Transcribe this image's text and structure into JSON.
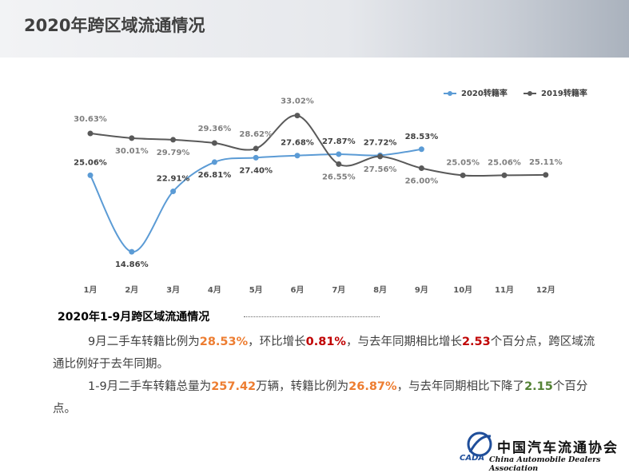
{
  "header": {
    "title": "2020年跨区域流通情况"
  },
  "chart_data": {
    "type": "line",
    "categories": [
      "1月",
      "2月",
      "3月",
      "4月",
      "5月",
      "6月",
      "7月",
      "8月",
      "9月",
      "10月",
      "11月",
      "12月"
    ],
    "series": [
      {
        "name": "2020转籍率",
        "color": "#5b9bd5",
        "values": [
          25.06,
          14.86,
          22.91,
          26.81,
          27.4,
          27.68,
          27.87,
          27.72,
          28.53,
          null,
          null,
          null
        ],
        "value_labels": [
          "25.06%",
          "14.86%",
          "22.91%",
          "26.81%",
          "27.40%",
          "27.68%",
          "27.87%",
          "27.72%",
          "28.53%",
          null,
          null,
          null
        ]
      },
      {
        "name": "2019转籍率",
        "color": "#595959",
        "values": [
          30.63,
          30.01,
          29.79,
          29.36,
          28.62,
          33.02,
          26.55,
          27.56,
          26.0,
          25.05,
          25.06,
          25.11
        ],
        "value_labels": [
          "30.63%",
          "30.01%",
          "29.79%",
          "29.36%",
          "28.62%",
          "33.02%",
          "26.55%",
          "27.56%",
          "26.00%",
          "25.05%",
          "25.06%",
          "25.11%"
        ]
      }
    ],
    "ylim": [
      12,
      35
    ],
    "grid": false,
    "legend": "top-right"
  },
  "section": {
    "title": "2020年1-9月跨区域流通情况",
    "paragraphs": [
      [
        {
          "text": "9月二手车转籍比例为"
        },
        {
          "text": "28.53%",
          "color": "#ed7d31"
        },
        {
          "text": "，环比增长"
        },
        {
          "text": "0.81%",
          "color": "#c00000"
        },
        {
          "text": "，与去年同期相比增长"
        },
        {
          "text": "2.53",
          "color": "#c00000"
        },
        {
          "text": "个百分点，跨区域流通比例好于去年同期。"
        }
      ],
      [
        {
          "text": "1-9月二手车转籍总量为"
        },
        {
          "text": "257.42",
          "color": "#ed7d31"
        },
        {
          "text": "万辆，转籍比例为"
        },
        {
          "text": "26.87%",
          "color": "#ed7d31"
        },
        {
          "text": "，与去年同期相比下降了"
        },
        {
          "text": "2.15",
          "color": "#548235"
        },
        {
          "text": "个百分点。"
        }
      ]
    ]
  },
  "logo": {
    "cn": "中国汽车流通协会",
    "en": "China Automobile Dealers Association",
    "abbr": "CADA"
  }
}
